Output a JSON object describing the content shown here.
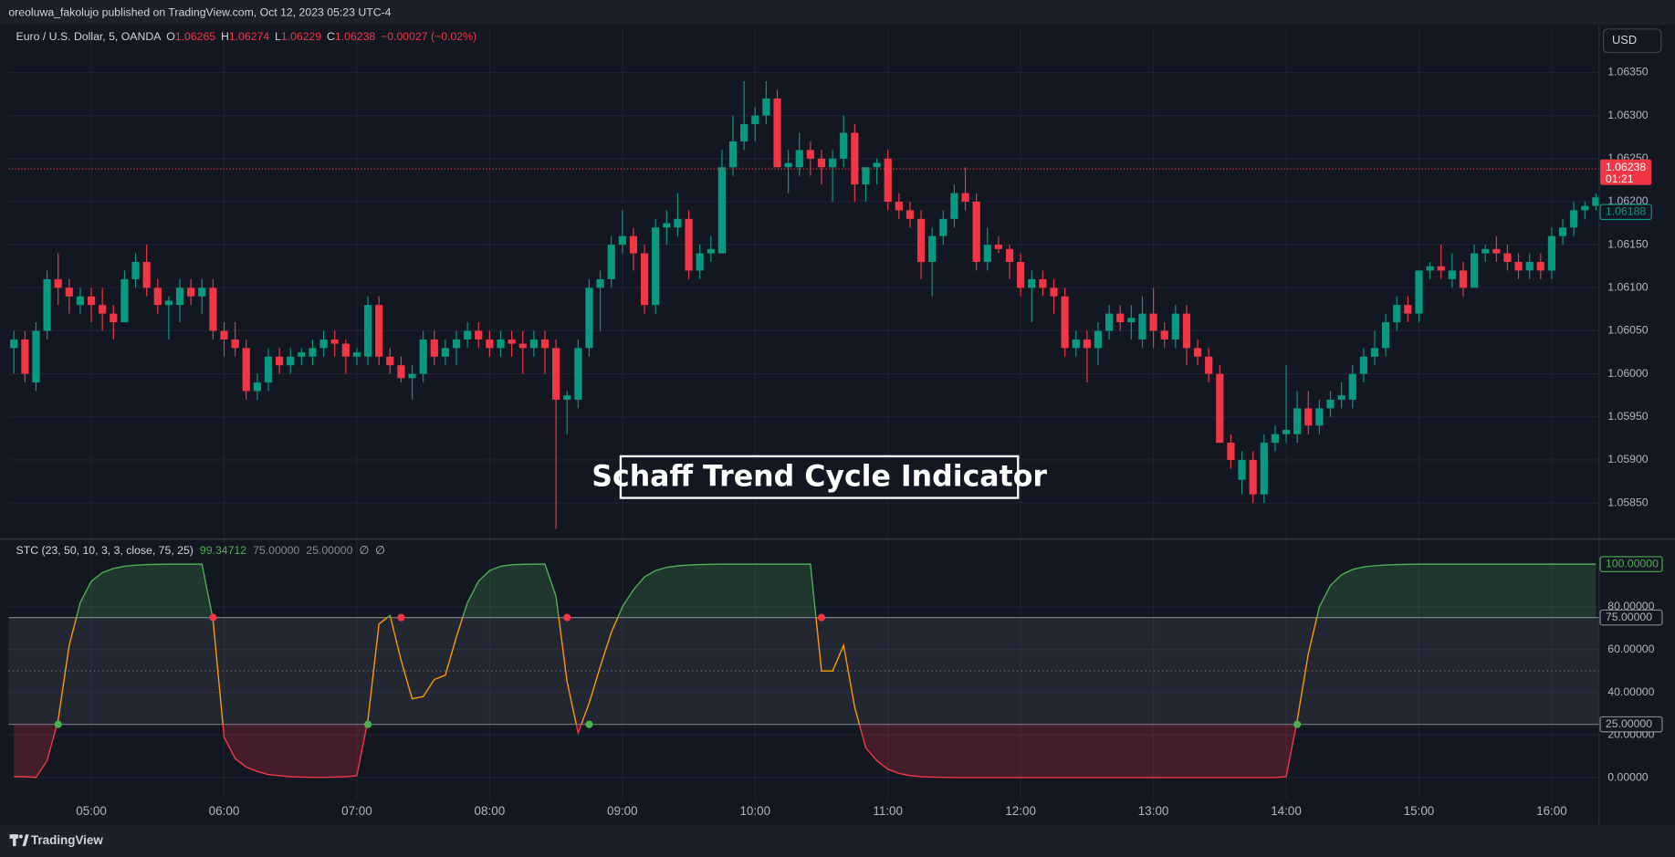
{
  "header": {
    "published": "oreoluwa_fakolujo published on TradingView.com, Oct 12, 2023 05:23 UTC-4"
  },
  "currency_button": "USD",
  "annotation": "Schaff Trend Cycle Indicator",
  "footer": {
    "brand": "TradingView"
  },
  "chart_data": [
    {
      "type": "candlestick",
      "symbol": "Euro / U.S. Dollar, 5, OANDA",
      "legend": [
        {
          "label": "O",
          "value": 1.06265
        },
        {
          "label": "H",
          "value": 1.06274
        },
        {
          "label": "L",
          "value": 1.06229
        },
        {
          "label": "C",
          "value": 1.06238
        }
      ],
      "change": "−0.00027 (−0.02%)",
      "categories": [
        null,
        null,
        null,
        null,
        null,
        null,
        null,
        "05:00",
        null,
        null,
        null,
        null,
        null,
        null,
        null,
        null,
        null,
        null,
        null,
        "06:00",
        null,
        null,
        null,
        null,
        null,
        null,
        null,
        null,
        null,
        null,
        null,
        "07:00",
        null,
        null,
        null,
        null,
        null,
        null,
        null,
        null,
        null,
        null,
        null,
        "08:00",
        null,
        null,
        null,
        null,
        null,
        null,
        null,
        null,
        null,
        null,
        null,
        "09:00",
        null,
        null,
        null,
        null,
        null,
        null,
        null,
        null,
        null,
        null,
        null,
        "10:00",
        null,
        null,
        null,
        null,
        null,
        null,
        null,
        null,
        null,
        null,
        null,
        "11:00",
        null,
        null,
        null,
        null,
        null,
        null,
        null,
        null,
        null,
        null,
        null,
        "12:00",
        null,
        null,
        null,
        null,
        null,
        null,
        null,
        null,
        null,
        null,
        null,
        "13:00",
        null,
        null,
        null,
        null,
        null,
        null,
        null,
        null,
        null,
        null,
        null,
        "14:00",
        null,
        null,
        null,
        null,
        null,
        null,
        null,
        null,
        null,
        null,
        null,
        "15:00",
        null,
        null,
        null,
        null,
        null,
        null,
        null,
        null,
        null,
        null,
        null,
        "16:00",
        null,
        null,
        null,
        null
      ],
      "open": [
        1.0603,
        1.0604,
        1.0599,
        1.0605,
        1.0611,
        1.061,
        1.0608,
        1.0609,
        1.0608,
        1.0607,
        1.0606,
        1.0611,
        1.0613,
        1.061,
        1.0608,
        1.0608,
        1.061,
        1.0609,
        1.061,
        1.0605,
        1.0604,
        1.0603,
        1.0598,
        1.0599,
        1.0602,
        1.0601,
        1.0602,
        1.0602,
        1.0603,
        1.0604,
        1.06035,
        1.0602,
        1.0602,
        1.0608,
        1.0602,
        1.0601,
        1.05995,
        1.06,
        1.0604,
        1.0602,
        1.0603,
        1.0604,
        1.0605,
        1.0604,
        1.0603,
        1.0604,
        1.06035,
        1.0603,
        1.0604,
        1.0603,
        1.0597,
        1.0597,
        1.0603,
        1.061,
        1.0611,
        1.0615,
        1.0616,
        1.0614,
        1.0608,
        1.0617,
        1.0617,
        1.0618,
        1.0612,
        1.0614,
        1.0614,
        1.0624,
        1.0627,
        1.0629,
        1.063,
        1.0632,
        1.0624,
        1.0624,
        1.0626,
        1.0625,
        1.0624,
        1.0625,
        1.0628,
        1.0622,
        1.0624,
        1.0625,
        1.062,
        1.0619,
        1.0618,
        1.0613,
        1.0616,
        1.0618,
        1.0621,
        1.062,
        1.0613,
        1.0615,
        1.06145,
        1.0613,
        1.061,
        1.0611,
        1.061,
        1.0609,
        1.0603,
        1.0604,
        1.0603,
        1.0605,
        1.0607,
        1.0606,
        1.0604,
        1.0607,
        1.0605,
        1.0604,
        1.0607,
        1.0603,
        1.0602,
        1.06,
        1.0592,
        1.05877,
        1.059,
        1.0586,
        1.0592,
        1.0593,
        1.0593,
        1.0596,
        1.0594,
        1.0596,
        1.0597,
        1.0597,
        1.06,
        1.0602,
        1.0603,
        1.0606,
        1.0608,
        1.0607,
        1.0612,
        1.06125,
        1.0611,
        1.0612,
        1.061,
        1.0614,
        1.06145,
        1.0614,
        1.0613,
        1.0612,
        1.0613,
        1.0612,
        1.0616,
        1.0617,
        1.0619,
        1.06195
      ],
      "high": [
        1.0605,
        1.0605,
        1.0606,
        1.0612,
        1.0614,
        1.0611,
        1.061,
        1.061,
        1.061,
        1.0608,
        1.0612,
        1.0614,
        1.0615,
        1.0611,
        1.0609,
        1.0611,
        1.0611,
        1.0611,
        1.0611,
        1.0606,
        1.0606,
        1.0604,
        1.06,
        1.0603,
        1.0603,
        1.0603,
        1.0603,
        1.0604,
        1.0605,
        1.0605,
        1.0604,
        1.0603,
        1.0609,
        1.0609,
        1.0603,
        1.0602,
        1.0601,
        1.0605,
        1.0605,
        1.0604,
        1.0605,
        1.0606,
        1.0606,
        1.0605,
        1.0605,
        1.0605,
        1.0605,
        1.0605,
        1.0605,
        1.0604,
        1.0598,
        1.0604,
        1.0611,
        1.0612,
        1.0616,
        1.0619,
        1.0617,
        1.0615,
        1.0618,
        1.0619,
        1.0621,
        1.0619,
        1.0615,
        1.0616,
        1.0626,
        1.063,
        1.0634,
        1.0631,
        1.0634,
        1.0633,
        1.0626,
        1.0628,
        1.0627,
        1.0626,
        1.0626,
        1.063,
        1.0629,
        1.0624,
        1.0625,
        1.0626,
        1.0621,
        1.062,
        1.0619,
        1.0617,
        1.0619,
        1.0622,
        1.0624,
        1.0621,
        1.0617,
        1.0616,
        1.0615,
        1.0614,
        1.0612,
        1.0612,
        1.0611,
        1.061,
        1.0605,
        1.0605,
        1.0606,
        1.0608,
        1.0608,
        1.0608,
        1.0609,
        1.061,
        1.0606,
        1.0608,
        1.0608,
        1.0604,
        1.0603,
        1.0601,
        1.0593,
        1.0591,
        1.0591,
        1.0593,
        1.0594,
        1.0601,
        1.0598,
        1.0598,
        1.0597,
        1.0598,
        1.0599,
        1.0601,
        1.0603,
        1.0605,
        1.0607,
        1.0609,
        1.0609,
        1.0612,
        1.0613,
        1.0615,
        1.0614,
        1.0613,
        1.0615,
        1.0615,
        1.0616,
        1.0615,
        1.0614,
        1.0614,
        1.0614,
        1.0617,
        1.0618,
        1.062,
        1.062,
        1.0621
      ],
      "low": [
        1.06,
        1.0599,
        1.0598,
        1.0604,
        1.0608,
        1.0607,
        1.0607,
        1.0606,
        1.0605,
        1.0604,
        1.0606,
        1.061,
        1.0609,
        1.0607,
        1.0604,
        1.0606,
        1.0608,
        1.0607,
        1.0604,
        1.0602,
        1.0602,
        1.0597,
        1.0597,
        1.0598,
        1.06,
        1.06,
        1.0601,
        1.0601,
        1.0602,
        1.0602,
        1.06,
        1.0601,
        1.0601,
        1.0601,
        1.06,
        1.0599,
        1.0597,
        1.0599,
        1.0601,
        1.0601,
        1.0601,
        1.0603,
        1.0603,
        1.0602,
        1.0602,
        1.0602,
        1.06,
        1.0602,
        1.06,
        1.0582,
        1.0593,
        1.0596,
        1.0602,
        1.0605,
        1.061,
        1.0614,
        1.0612,
        1.0607,
        1.0607,
        1.0615,
        1.0616,
        1.0611,
        1.0611,
        1.0613,
        1.0614,
        1.0623,
        1.0626,
        1.0627,
        1.0629,
        1.0624,
        1.0621,
        1.0623,
        1.0623,
        1.0622,
        1.062,
        1.0624,
        1.062,
        1.062,
        1.0622,
        1.0619,
        1.0618,
        1.0617,
        1.0611,
        1.0609,
        1.0615,
        1.0617,
        1.0619,
        1.0612,
        1.0612,
        1.0614,
        1.0611,
        1.0609,
        1.0606,
        1.0609,
        1.0607,
        1.0602,
        1.0602,
        1.0599,
        1.0601,
        1.0604,
        1.0605,
        1.0604,
        1.0603,
        1.0603,
        1.0603,
        1.0603,
        1.0601,
        1.0601,
        1.0599,
        1.0592,
        1.0589,
        1.0586,
        1.0585,
        1.0585,
        1.0591,
        1.0592,
        1.0592,
        1.0593,
        1.0593,
        1.0595,
        1.0596,
        1.0596,
        1.0599,
        1.0601,
        1.0602,
        1.0605,
        1.0606,
        1.0606,
        1.0611,
        1.0611,
        1.061,
        1.0609,
        1.061,
        1.0613,
        1.0613,
        1.0612,
        1.0611,
        1.0611,
        1.0611,
        1.0611,
        1.0615,
        1.0616,
        1.0618,
        1.0619
      ],
      "close": [
        1.0604,
        1.06,
        1.0605,
        1.0611,
        1.061,
        1.0609,
        1.0609,
        1.0608,
        1.0607,
        1.0606,
        1.0611,
        1.0613,
        1.061,
        1.0608,
        1.06085,
        1.061,
        1.0609,
        1.061,
        1.0605,
        1.0604,
        1.0603,
        1.0598,
        1.0599,
        1.0602,
        1.0601,
        1.0602,
        1.06025,
        1.0603,
        1.0604,
        1.06035,
        1.0602,
        1.06025,
        1.0608,
        1.0602,
        1.0601,
        1.05995,
        1.06,
        1.0604,
        1.0602,
        1.0603,
        1.0604,
        1.0605,
        1.0604,
        1.0603,
        1.0604,
        1.06035,
        1.0603,
        1.0604,
        1.0603,
        1.0597,
        1.05975,
        1.0603,
        1.061,
        1.0611,
        1.0615,
        1.0616,
        1.0614,
        1.0608,
        1.0617,
        1.06175,
        1.0618,
        1.0612,
        1.0614,
        1.06145,
        1.0624,
        1.0627,
        1.0629,
        1.063,
        1.0632,
        1.0624,
        1.06245,
        1.0626,
        1.0625,
        1.0624,
        1.0625,
        1.0628,
        1.0622,
        1.0624,
        1.06245,
        1.062,
        1.0619,
        1.0618,
        1.0613,
        1.0616,
        1.0618,
        1.0621,
        1.062,
        1.0613,
        1.0615,
        1.06145,
        1.0613,
        1.061,
        1.0611,
        1.061,
        1.0609,
        1.0603,
        1.0604,
        1.0603,
        1.0605,
        1.0607,
        1.0606,
        1.06065,
        1.0607,
        1.0605,
        1.0604,
        1.0607,
        1.0603,
        1.0602,
        1.06,
        1.0592,
        1.059,
        1.059,
        1.0586,
        1.0592,
        1.0593,
        1.05935,
        1.0596,
        1.0594,
        1.0596,
        1.0597,
        1.05975,
        1.06,
        1.0602,
        1.0603,
        1.0606,
        1.0608,
        1.0607,
        1.0612,
        1.06125,
        1.0612,
        1.0612,
        1.061,
        1.0614,
        1.06145,
        1.0614,
        1.0613,
        1.0612,
        1.0613,
        1.0612,
        1.0616,
        1.0617,
        1.0619,
        1.06195,
        1.06205
      ],
      "up_color": "#089981",
      "down_color": "#f23645",
      "ylim": [
        1.0581,
        1.06403
      ],
      "yticks": [
        {
          "value": 1.0585,
          "label": "1.05850"
        },
        {
          "value": 1.059,
          "label": "1.05900"
        },
        {
          "value": 1.0595,
          "label": "1.05950"
        },
        {
          "value": 1.06,
          "label": "1.06000"
        },
        {
          "value": 1.0605,
          "label": "1.06050"
        },
        {
          "value": 1.061,
          "label": "1.06100"
        },
        {
          "value": 1.0615,
          "label": "1.06150"
        },
        {
          "value": 1.062,
          "label": "1.06200"
        },
        {
          "value": 1.0625,
          "label": "1.06250"
        },
        {
          "value": 1.063,
          "label": "1.06300"
        },
        {
          "value": 1.0635,
          "label": "1.06350"
        }
      ],
      "grid": true,
      "price_line": {
        "value": 1.06238,
        "countdown": "01:21",
        "color": "#f23645"
      },
      "price_tag": {
        "value": 1.06188,
        "color": "#089981"
      }
    },
    {
      "type": "line",
      "title": "STC (23, 50, 10, 3, 3, close, 75, 25)",
      "legend_values": [
        {
          "value": 99.34712,
          "color": "#4caf50"
        },
        {
          "value": 75,
          "label": "75.00000",
          "color": "#868993"
        },
        {
          "value": 25,
          "label": "25.00000",
          "color": "#868993"
        },
        {
          "label": "∅",
          "color": "#b2b5be"
        },
        {
          "label": "∅",
          "color": "#b2b5be"
        }
      ],
      "values": [
        0.5,
        0.5,
        0.2,
        8,
        27,
        62,
        82,
        92,
        96,
        98,
        99,
        99.5,
        99.8,
        99.9,
        100,
        100,
        100,
        100,
        74,
        19,
        9,
        5,
        3,
        1.5,
        1,
        0.5,
        0.3,
        0.2,
        0.2,
        0.3,
        0.5,
        1,
        27,
        72,
        76,
        55,
        37,
        38,
        46,
        48,
        66,
        82,
        92,
        97,
        99,
        99.7,
        99.9,
        100,
        100,
        85,
        45,
        21,
        35,
        52,
        68,
        80,
        88,
        94,
        97,
        98.5,
        99.2,
        99.6,
        99.8,
        99.9,
        100,
        100,
        100,
        100,
        100,
        100,
        100,
        100,
        100,
        50,
        50,
        62,
        33,
        14,
        8,
        4,
        2,
        1,
        0.5,
        0.3,
        0.2,
        0.1,
        0.1,
        0.1,
        0.1,
        0.1,
        0.1,
        0.1,
        0.1,
        0.1,
        0.1,
        0.1,
        0.1,
        0.1,
        0.1,
        0.1,
        0.1,
        0.1,
        0.1,
        0.1,
        0.1,
        0.1,
        0.1,
        0.1,
        0.1,
        0.1,
        0.1,
        0.1,
        0.1,
        0.1,
        0.1,
        0.5,
        27,
        58,
        80,
        90,
        95,
        97.5,
        98.7,
        99.3,
        99.6,
        99.8,
        99.9,
        100,
        100,
        100,
        100,
        100,
        100,
        100,
        100,
        100,
        100,
        100,
        100,
        100,
        100,
        100,
        100,
        100
      ],
      "color": "#ff9800",
      "upper_color": "#4caf50",
      "lower_color": "#f23645",
      "upper_band": 75,
      "lower_band": 25,
      "middle": 50,
      "ylim": [
        -10,
        111
      ],
      "yticks": [
        {
          "value": 0,
          "label": "0.00000"
        },
        {
          "value": 20,
          "label": "20.00000"
        },
        {
          "value": 40,
          "label": "40.00000"
        },
        {
          "value": 60,
          "label": "60.00000"
        },
        {
          "value": 80,
          "label": "80.00000"
        }
      ],
      "tags": [
        {
          "value": 100,
          "label": "100.00000",
          "color": "#4caf50"
        },
        {
          "value": 75,
          "label": "75.00000",
          "color": "#868993"
        },
        {
          "value": 25,
          "label": "25.00000",
          "color": "#868993"
        }
      ]
    }
  ]
}
